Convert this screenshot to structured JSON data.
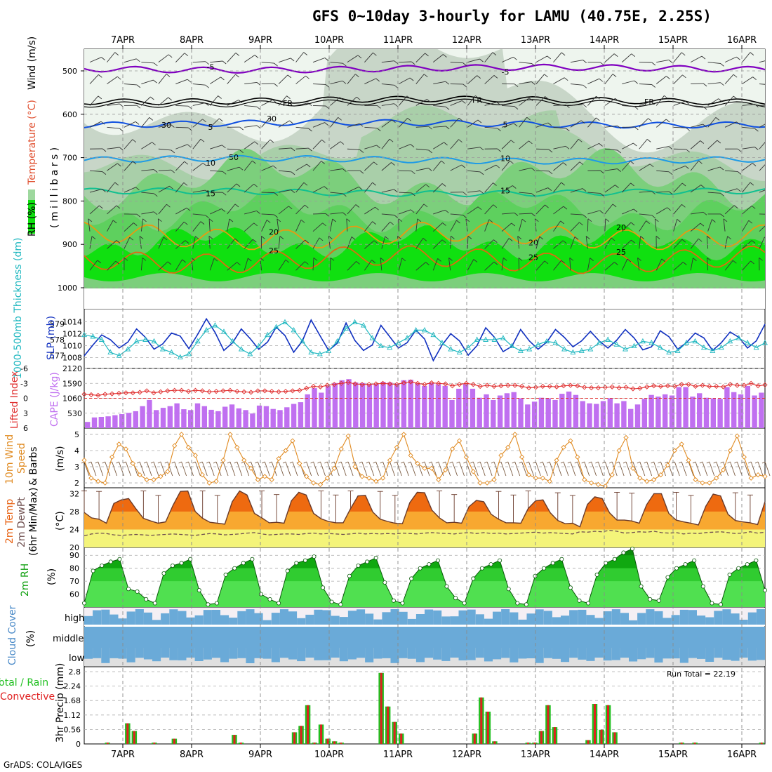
{
  "title": "GFS 0~10day 3-hourly for LAMU (40.75E, 2.25S)",
  "credit": "GrADS: COLA/IGES",
  "colors": {
    "wind_purple": "#8000c0",
    "fr_black": "#000000",
    "iso_blue": "#1050e0",
    "iso_lightblue": "#1e9be6",
    "iso_teal": "#10c090",
    "iso_orange": "#e89a10",
    "iso_darkorange": "#e06a10",
    "slp": "#1030c0",
    "thickness": "#20b8c0",
    "lifted": "#e03030",
    "cape": "#c070f0",
    "wind10": "#e08a20",
    "t2m": "#e86010",
    "dewpt": "#705050",
    "rh_green": "#10c010",
    "cloud": "#6aaad8",
    "precip_total": "#20c020",
    "precip_conv": "#e02020"
  },
  "dates": [
    "7APR",
    "8APR",
    "9APR",
    "10APR",
    "11APR",
    "12APR",
    "13APR",
    "14APR",
    "15APR",
    "16APR"
  ],
  "panel_labels": {
    "upper": {
      "rh": "RH (%)",
      "temp": "Temperature (°C)",
      "wind": "Wind (m/s)",
      "pressure": "( m i l l i b a r s )"
    },
    "slp": {
      "thick": "1000-500mb Thickness (dm)",
      "slp": "SLP (mb)"
    },
    "cape": {
      "li": "Lifted Index",
      "cape": "CAPE (J/kg)"
    },
    "wind10": {
      "a": "10m Wind",
      "b": "Speed",
      "c": "& Barbs",
      "unit": "(m/s)"
    },
    "temp": {
      "a": "2m Temp",
      "b": "2m DewPt",
      "c": "(6hr Min/Max)",
      "unit": "(°C)"
    },
    "rh": {
      "a": "2m RH",
      "unit": "(%)"
    },
    "cloud": {
      "a": "Cloud Cover",
      "unit": "(%)",
      "high": "high",
      "middle": "middle",
      "low": "low"
    },
    "precip": {
      "a": "Total / Rain",
      "b": "Convective",
      "c": "3hr Precip (mm)",
      "run_total": "Run Total = 22.19"
    }
  },
  "chart_data": [
    {
      "type": "contour",
      "name": "upper",
      "yticks": [
        500,
        600,
        700,
        800,
        900,
        1000
      ],
      "ylim": [
        1000,
        450
      ],
      "isotherms": [
        {
          "label": "-5",
          "pressure": 495
        },
        {
          "label": "FR",
          "pressure": 568
        },
        {
          "label": "5",
          "pressure": 622
        },
        {
          "label": "10",
          "pressure": 705
        },
        {
          "label": "15",
          "pressure": 780
        },
        {
          "label": "20",
          "pressure": 880
        },
        {
          "label": "25",
          "pressure": 935
        }
      ],
      "rh_labels": [
        "30",
        "30",
        "50"
      ]
    },
    {
      "type": "line",
      "name": "slp_thickness",
      "slp_yticks": [
        1008,
        1010,
        1012,
        1014
      ],
      "thickness_yticks": [
        577,
        578,
        579
      ],
      "slp_ylim": [
        1007,
        1015
      ],
      "thickness_ylim": [
        576.5,
        579.5
      ],
      "slp": [
        1008.3,
        1010.1,
        1011.8,
        1011.0,
        1009.6,
        1010.6,
        1012.8,
        1011.4,
        1009.4,
        1010.3,
        1012.1,
        1011.6,
        1009.5,
        1011.9,
        1014.5,
        1012.2,
        1009.2,
        1010.5,
        1012.8,
        1011.2,
        1009.4,
        1010.6,
        1013.1,
        1011.7,
        1008.9,
        1010.8,
        1014.3,
        1011.7,
        1009.2,
        1010.4,
        1013.8,
        1010.9,
        1009.2,
        1010.1,
        1013.4,
        1011.5,
        1009.6,
        1010.5,
        1012.6,
        1011.1,
        1007.5,
        1010.1,
        1012.0,
        1010.8,
        1008.4,
        1010.0,
        1013.0,
        1011.4,
        1009.0,
        1009.9,
        1012.7,
        1010.8,
        1009.4,
        1010.6,
        1012.7,
        1011.4,
        1009.8,
        1010.8,
        1012.4,
        1010.8,
        1009.6,
        1010.9,
        1012.7,
        1011.3,
        1009.3,
        1009.8,
        1012.5,
        1011.5,
        1009.4,
        1010.5,
        1012.1,
        1011.3,
        1009.2,
        1010.5,
        1012.3,
        1011.4,
        1009.6,
        1010.8,
        1013.6
      ],
      "thickness": [
        578.3,
        578.2,
        578.0,
        577.2,
        577.0,
        577.4,
        577.9,
        578.0,
        577.9,
        577.4,
        577.2,
        576.9,
        577.1,
        577.9,
        578.6,
        578.9,
        578.5,
        577.9,
        577.4,
        577.1,
        577.6,
        578.3,
        578.8,
        579.1,
        578.6,
        577.9,
        577.2,
        577.1,
        577.3,
        577.9,
        578.7,
        579.1,
        578.9,
        578.1,
        577.6,
        577.5,
        577.8,
        578.1,
        578.6,
        578.6,
        578.3,
        577.8,
        577.4,
        577.2,
        577.5,
        578.0,
        578.0,
        578.0,
        578.1,
        577.6,
        577.3,
        577.4,
        577.7,
        577.9,
        577.8,
        577.4,
        577.2,
        577.3,
        577.4,
        577.8,
        578.0,
        577.7,
        577.4,
        577.6,
        577.9,
        577.8,
        577.5,
        577.2,
        577.3,
        577.8,
        577.9,
        577.5,
        577.3,
        577.5,
        577.9,
        578.1,
        577.8,
        577.5,
        577.8
      ]
    },
    {
      "type": "bar+line",
      "name": "cape_li",
      "cape_yticks": [
        530,
        1060,
        1590,
        2120
      ],
      "li_yticks": [
        6,
        3,
        0,
        -3,
        -6
      ],
      "cape": [
        220,
        380,
        400,
        420,
        460,
        500,
        540,
        600,
        780,
        1000,
        640,
        720,
        780,
        880,
        670,
        640,
        880,
        780,
        650,
        600,
        760,
        840,
        700,
        640,
        520,
        800,
        780,
        680,
        640,
        740,
        860,
        920,
        1200,
        1420,
        1260,
        1500,
        1600,
        1700,
        1740,
        1620,
        1600,
        1540,
        1560,
        1640,
        1620,
        1580,
        1700,
        1720,
        1580,
        1500,
        1620,
        1560,
        1500,
        1000,
        1400,
        1560,
        1400,
        1080,
        1200,
        1000,
        1160,
        1240,
        1280,
        1060,
        840,
        940,
        1080,
        1060,
        1000,
        1220,
        1300,
        1180,
        960,
        880,
        860,
        960,
        1060,
        880,
        960,
        680,
        840,
        1040,
        1180,
        1120,
        1200,
        1160,
        1460,
        1460,
        1120,
        1240,
        1080,
        1060,
        1040,
        1460,
        1280,
        1200,
        1500,
        1160,
        1260
      ],
      "lifted_index": [
        -0.8,
        -0.7,
        -0.6,
        -0.8,
        -0.9,
        -1.0,
        -1.1,
        -1.1,
        -1.2,
        -1.5,
        -1.1,
        -1.3,
        -1.5,
        -1.6,
        -1.6,
        -1.4,
        -1.6,
        -1.5,
        -1.3,
        -1.4,
        -1.5,
        -1.6,
        -1.4,
        -1.3,
        -1.2,
        -1.5,
        -1.5,
        -1.4,
        -1.3,
        -1.4,
        -1.5,
        -1.6,
        -2.0,
        -2.4,
        -2.3,
        -2.6,
        -2.8,
        -3.0,
        -3.2,
        -2.9,
        -2.8,
        -2.8,
        -2.9,
        -3.0,
        -2.9,
        -2.8,
        -3.1,
        -3.3,
        -3.0,
        -2.8,
        -3.1,
        -3.0,
        -2.9,
        -2.5,
        -2.8,
        -3.0,
        -2.8,
        -2.4,
        -2.6,
        -2.4,
        -2.5,
        -2.6,
        -2.6,
        -2.4,
        -2.1,
        -2.2,
        -2.4,
        -2.4,
        -2.3,
        -2.5,
        -2.6,
        -2.5,
        -2.2,
        -2.1,
        -2.1,
        -2.2,
        -2.3,
        -2.1,
        -2.2,
        -1.9,
        -2.0,
        -2.3,
        -2.5,
        -2.4,
        -2.5,
        -2.4,
        -2.8,
        -2.8,
        -2.4,
        -2.6,
        -2.4,
        -2.4,
        -2.3,
        -2.8,
        -2.6,
        -2.6,
        -3.0,
        -2.5,
        -2.7
      ]
    },
    {
      "type": "line",
      "name": "wind10",
      "yticks": [
        2,
        3,
        4,
        5
      ],
      "ylim": [
        1.7,
        5.3
      ],
      "speed": [
        3.4,
        2.3,
        2.1,
        2.0,
        3.6,
        4.4,
        4.1,
        3.2,
        2.5,
        2.2,
        2.2,
        2.4,
        2.7,
        4.3,
        5.0,
        4.2,
        3.7,
        2.5,
        2.0,
        2.1,
        3.4,
        5.0,
        4.2,
        3.4,
        2.9,
        2.2,
        2.4,
        2.2,
        3.5,
        4.0,
        4.6,
        3.2,
        2.4,
        2.0,
        1.9,
        2.3,
        2.9,
        4.1,
        4.9,
        3.0,
        2.4,
        2.3,
        2.1,
        2.3,
        3.4,
        4.2,
        5.0,
        3.7,
        3.2,
        2.9,
        2.9,
        2.2,
        2.8,
        4.1,
        4.6,
        3.6,
        2.7,
        2.0,
        2.0,
        2.2,
        3.7,
        4.2,
        5.0,
        3.6,
        2.5,
        2.3,
        2.3,
        2.1,
        3.4,
        4.2,
        4.6,
        3.6,
        2.2,
        2.0,
        1.9,
        1.8,
        2.5,
        4.0,
        4.8,
        2.9,
        2.3,
        2.1,
        2.2,
        2.5,
        3.1,
        4.0,
        4.4,
        3.4,
        2.2,
        2.0,
        2.0,
        2.3,
        2.8,
        4.0,
        4.9,
        3.6,
        2.3,
        2.5,
        2.4
      ]
    },
    {
      "type": "area",
      "name": "t2m",
      "yticks": [
        20,
        24,
        28,
        32
      ],
      "ylim": [
        20,
        33
      ],
      "temp": [
        27.8,
        26.6,
        26.3,
        25.4,
        29.8,
        30.6,
        30.9,
        28.6,
        26.5,
        25.9,
        25.4,
        25.7,
        29.4,
        32.5,
        32.6,
        28.0,
        26.5,
        25.6,
        25.4,
        25.2,
        30.2,
        32.6,
        31.7,
        27.6,
        26.6,
        25.5,
        25.6,
        25.4,
        30.4,
        32.3,
        31.7,
        27.6,
        26.4,
        25.8,
        25.5,
        25.5,
        28.7,
        31.5,
        31.6,
        27.9,
        26.3,
        25.8,
        25.4,
        25.3,
        30.0,
        32.3,
        32.2,
        28.3,
        26.6,
        25.5,
        25.6,
        25.4,
        29.1,
        30.5,
        30.2,
        27.4,
        26.3,
        25.5,
        25.5,
        25.4,
        28.7,
        30.4,
        30.6,
        27.7,
        26.0,
        25.3,
        25.4,
        24.6,
        29.6,
        31.3,
        30.9,
        27.7,
        26.1,
        26.1,
        25.9,
        25.4,
        29.5,
        32.0,
        32.0,
        27.6,
        26.1,
        25.7,
        25.4,
        25.0,
        29.2,
        31.9,
        31.5,
        27.4,
        26.0,
        25.7,
        25.5,
        25.1,
        30.2
      ],
      "dewpoint": [
        22.6,
        23.0,
        23.2,
        23.1,
        22.8,
        22.7,
        22.8,
        22.9,
        22.8,
        22.7,
        22.8,
        22.9,
        23.0,
        22.9,
        22.8,
        22.7,
        22.9,
        23.1,
        23.0,
        22.8,
        22.9,
        23.0,
        23.2,
        23.3,
        23.0,
        22.8,
        22.9,
        23.0,
        23.0,
        22.9,
        23.1,
        23.2,
        23.0,
        23.1,
        23.0,
        22.9,
        23.0,
        23.2,
        23.0,
        23.1,
        23.0,
        23.1,
        23.0,
        23.2,
        23.1,
        23.0,
        23.2,
        23.3,
        23.2,
        23.1,
        23.0,
        23.2,
        23.3,
        23.1,
        23.3,
        23.1,
        23.2,
        23.0,
        23.1,
        23.2,
        23.3,
        23.4,
        23.2,
        23.3,
        23.2,
        23.1,
        23.0,
        23.5,
        23.4,
        23.6,
        23.5,
        23.8,
        23.6,
        23.2,
        23.3,
        23.5,
        23.4,
        23.6,
        23.3,
        23.2,
        23.3,
        23.0,
        23.2,
        23.1,
        23.3,
        23.4,
        23.5,
        23.3,
        23.1,
        23.2,
        23.5,
        23.2,
        23.4
      ]
    },
    {
      "type": "area",
      "name": "rh2m",
      "yticks": [
        60,
        70,
        80,
        90
      ],
      "ylim": [
        50,
        95
      ],
      "rh": [
        53,
        78,
        82,
        85,
        87,
        64,
        62,
        56,
        53,
        76,
        82,
        84,
        87,
        63,
        52,
        53,
        75,
        80,
        84,
        87,
        60,
        56,
        53,
        78,
        84,
        86,
        89,
        65,
        54,
        52,
        74,
        82,
        85,
        88,
        69,
        55,
        53,
        72,
        80,
        83,
        86,
        66,
        57,
        53,
        72,
        80,
        83,
        86,
        64,
        53,
        52,
        74,
        80,
        84,
        87,
        65,
        55,
        53,
        75,
        84,
        87,
        92,
        95,
        66,
        56,
        55,
        73,
        80,
        83,
        86,
        66,
        53,
        52,
        75,
        80,
        83,
        86,
        63
      ]
    },
    {
      "type": "bar",
      "name": "cloud",
      "levels": [
        "high",
        "middle",
        "low"
      ]
    },
    {
      "type": "bar",
      "name": "precip",
      "yticks": [
        0.56,
        1.12,
        1.68,
        2.24,
        2.8
      ],
      "ylim": [
        0,
        2.8
      ],
      "total": [
        0,
        0,
        0,
        0.05,
        0,
        0,
        0.8,
        0.5,
        0,
        0,
        0.05,
        0,
        0,
        0.2,
        0,
        0,
        0,
        0,
        0,
        0,
        0,
        0,
        0.35,
        0.05,
        0,
        0,
        0,
        0,
        0,
        0,
        0,
        0.45,
        0.7,
        1.5,
        0.05,
        0.75,
        0.2,
        0.1,
        0.05,
        0,
        0,
        0,
        0,
        0,
        2.75,
        1.45,
        0.85,
        0.4,
        0,
        0,
        0,
        0,
        0,
        0,
        0,
        0,
        0,
        0,
        0.4,
        1.8,
        1.25,
        0.1,
        0,
        0,
        0,
        0,
        0.05,
        0.05,
        0.5,
        1.5,
        0.65,
        0,
        0,
        0,
        0,
        0.15,
        1.55,
        0.55,
        1.5,
        0.45,
        0,
        0,
        0,
        0,
        0,
        0,
        0,
        0,
        0,
        0.05,
        0,
        0.05,
        0,
        0,
        0,
        0,
        0,
        0,
        0,
        0,
        0,
        0.05
      ],
      "convective": [
        0,
        0,
        0,
        0.05,
        0,
        0,
        0.8,
        0.5,
        0,
        0,
        0.05,
        0,
        0,
        0.2,
        0,
        0,
        0,
        0,
        0,
        0,
        0,
        0,
        0.35,
        0.05,
        0,
        0,
        0,
        0,
        0,
        0,
        0,
        0.45,
        0.7,
        1.5,
        0.05,
        0.75,
        0.2,
        0.1,
        0.05,
        0,
        0,
        0,
        0,
        0,
        2.75,
        1.45,
        0.85,
        0.4,
        0,
        0,
        0,
        0,
        0,
        0,
        0,
        0,
        0,
        0,
        0.4,
        1.8,
        1.25,
        0.1,
        0,
        0,
        0,
        0,
        0.05,
        0.05,
        0.5,
        1.5,
        0.65,
        0,
        0,
        0,
        0,
        0.15,
        1.55,
        0.55,
        1.5,
        0.45,
        0,
        0,
        0,
        0,
        0,
        0,
        0,
        0,
        0,
        0.05,
        0,
        0.05,
        0,
        0,
        0,
        0,
        0,
        0,
        0,
        0,
        0,
        0.05
      ]
    }
  ]
}
